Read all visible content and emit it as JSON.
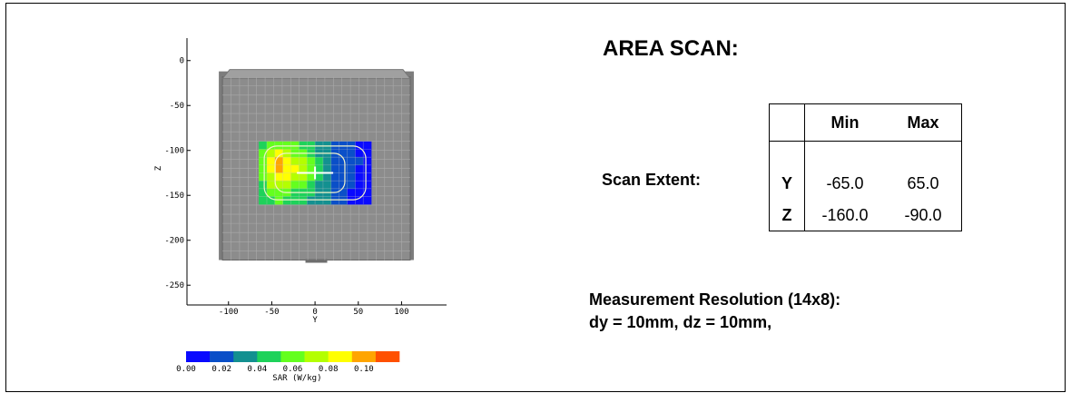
{
  "scan": {
    "title": "AREA SCAN:",
    "extent_label": "Scan Extent:",
    "table": {
      "headers": [
        "",
        "Min",
        "Max"
      ],
      "rows": [
        {
          "axis": "Y",
          "min": "-65.0",
          "max": "65.0"
        },
        {
          "axis": "Z",
          "min": "-160.0",
          "max": "-90.0"
        }
      ]
    },
    "resolution_line1": "Measurement Resolution (14x8):",
    "resolution_line2": "dy = 10mm, dz = 10mm,"
  },
  "chart_data": [
    {
      "type": "heatmap",
      "xlabel": "Y",
      "ylabel": "Z",
      "x_ticks": [
        "-100",
        "-50",
        "0",
        "50",
        "100"
      ],
      "y_ticks": [
        "0",
        "-50",
        "-100",
        "-150",
        "-200",
        "-250"
      ],
      "x_tick_values": [
        -100,
        -50,
        0,
        50,
        100
      ],
      "y_tick_values": [
        0,
        -50,
        -100,
        -150,
        -200,
        -250
      ],
      "xlim": [
        -148,
        152
      ],
      "ylim": [
        -272,
        25
      ],
      "phantom_y_range": [
        -107,
        110
      ],
      "phantom_z_range": [
        -222,
        -10
      ],
      "scan_y_range": [
        -65,
        65
      ],
      "scan_z_range": [
        -160,
        -90
      ],
      "grid_cols": 14,
      "grid_rows": 8,
      "phantom_color": "#8c8c8c",
      "grid_color": "#aaaaaa",
      "colors": [
        "#0a0aff",
        "#0a4fc8",
        "#139090",
        "#1ed25a",
        "#64ff1e",
        "#b4ff00",
        "#ffff00",
        "#ffa500",
        "#ff5000"
      ],
      "sar_grid": [
        [
          3,
          4,
          4,
          4,
          4,
          3,
          3,
          2,
          2,
          1,
          1,
          1,
          0,
          0
        ],
        [
          4,
          5,
          6,
          5,
          4,
          4,
          3,
          2,
          2,
          1,
          1,
          1,
          0,
          0
        ],
        [
          4,
          6,
          7,
          6,
          5,
          5,
          4,
          3,
          2,
          1,
          1,
          1,
          1,
          0
        ],
        [
          4,
          6,
          7,
          6,
          6,
          5,
          4,
          3,
          2,
          1,
          1,
          1,
          0,
          0
        ],
        [
          4,
          5,
          6,
          6,
          5,
          5,
          4,
          3,
          2,
          1,
          1,
          1,
          0,
          0
        ],
        [
          3,
          5,
          5,
          5,
          4,
          4,
          3,
          2,
          2,
          1,
          1,
          1,
          0,
          0
        ],
        [
          3,
          4,
          4,
          4,
          3,
          3,
          3,
          2,
          2,
          1,
          1,
          0,
          0,
          0
        ],
        [
          3,
          3,
          4,
          3,
          3,
          3,
          2,
          2,
          2,
          1,
          1,
          0,
          0,
          0
        ]
      ],
      "peak": {
        "y": 0,
        "z": -125
      }
    },
    {
      "type": "colorbar",
      "xlabel": "SAR (W/kg)",
      "tick_labels": [
        "0.00",
        "0.02",
        "0.04",
        "0.06",
        "0.08",
        "0.10"
      ],
      "tick_values": [
        0,
        0.02,
        0.04,
        0.06,
        0.08,
        0.1
      ],
      "range": [
        0,
        0.12
      ],
      "colors": [
        "#0a0aff",
        "#0a4fc8",
        "#139090",
        "#1ed25a",
        "#64ff1e",
        "#b4ff00",
        "#ffff00",
        "#ffa500",
        "#ff5000"
      ]
    }
  ]
}
